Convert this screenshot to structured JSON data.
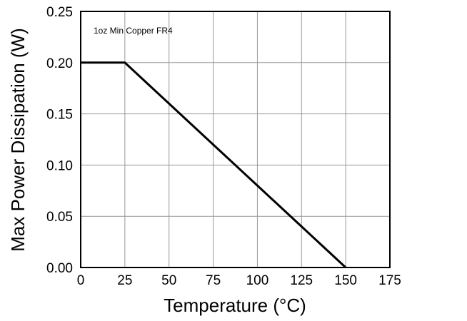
{
  "chart_data": {
    "type": "line",
    "title": "",
    "xlabel": "Temperature (°C)",
    "ylabel": "Max Power Dissipation (W)",
    "annotation": "1oz Min Copper FR4",
    "xlim": [
      0,
      175
    ],
    "ylim": [
      0,
      0.25
    ],
    "x_ticks": [
      0,
      25,
      50,
      75,
      100,
      125,
      150,
      175
    ],
    "x_tick_labels": [
      "0",
      "25",
      "50",
      "75",
      "100",
      "125",
      "150",
      "175"
    ],
    "y_ticks": [
      0,
      0.05,
      0.1,
      0.15,
      0.2,
      0.25
    ],
    "y_tick_labels": [
      "0.00",
      "0.05",
      "0.10",
      "0.15",
      "0.20",
      "0.25"
    ],
    "grid": true,
    "series": [
      {
        "x": [
          0,
          25,
          150
        ],
        "y": [
          0.2,
          0.2,
          0.0
        ],
        "color": "#000000"
      }
    ]
  }
}
